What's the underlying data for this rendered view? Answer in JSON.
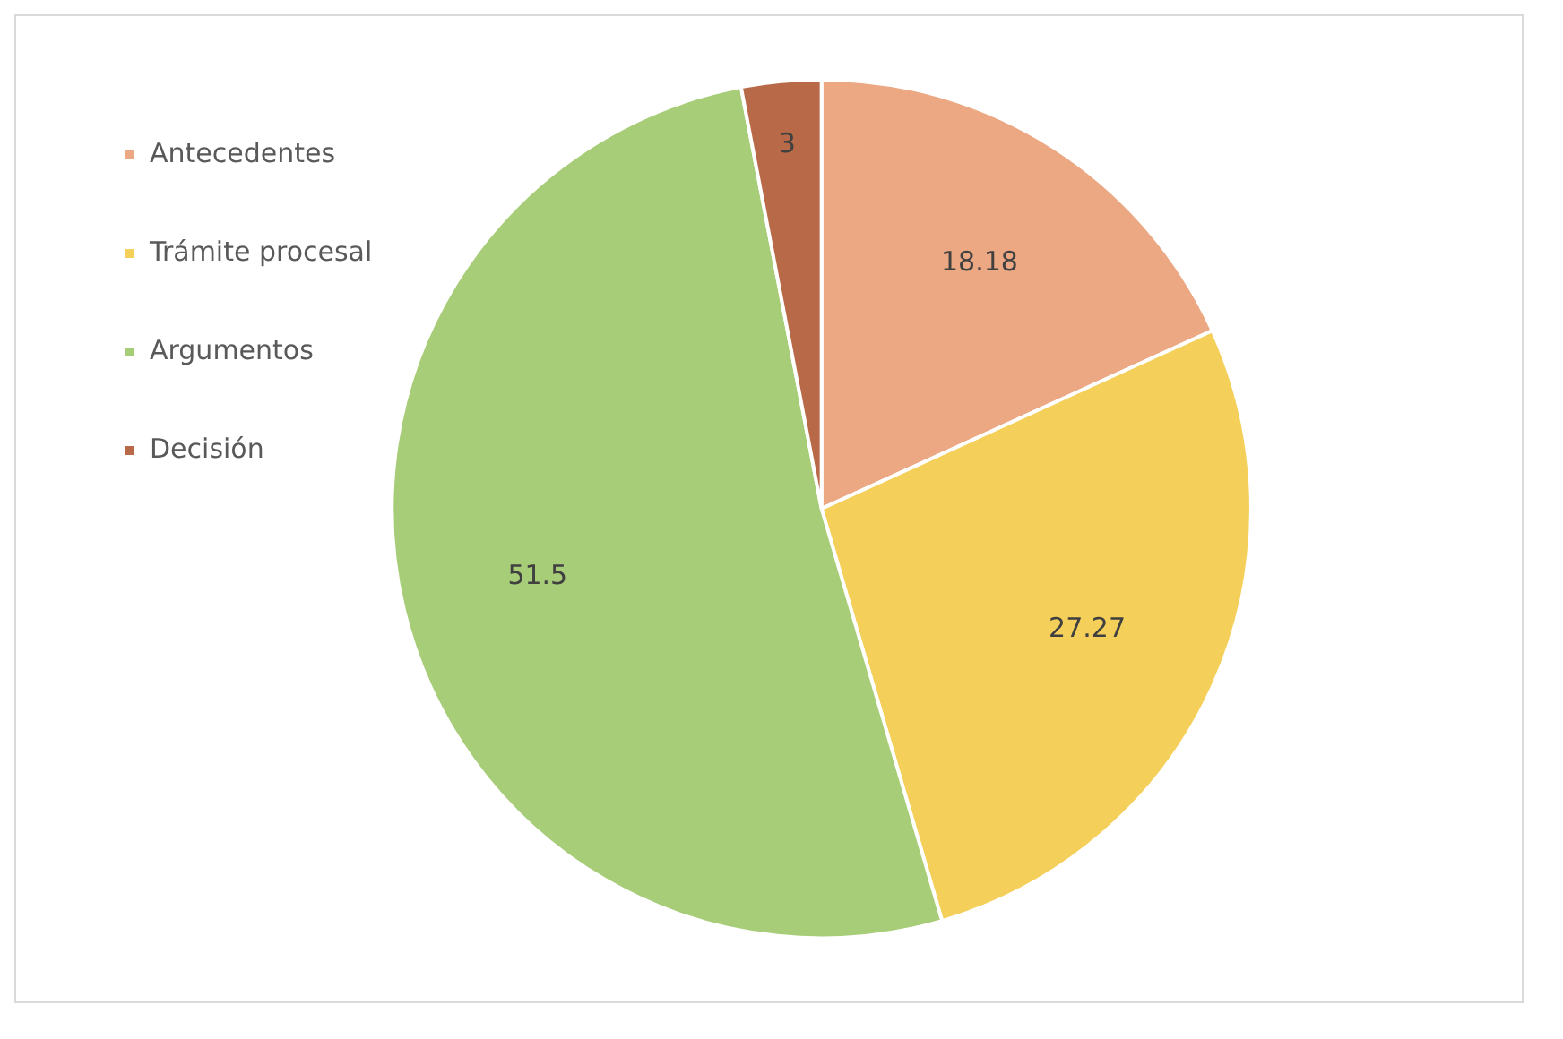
{
  "chart_data": {
    "type": "pie",
    "categories": [
      "Antecedentes",
      "Trámite procesal",
      "Argumentos",
      "Decisión"
    ],
    "values": [
      18.18,
      27.27,
      51.5,
      3
    ],
    "colors": [
      "#eba883",
      "#f4cf5a",
      "#a8cd78",
      "#b86a48"
    ],
    "data_labels": true,
    "legend": "left"
  }
}
